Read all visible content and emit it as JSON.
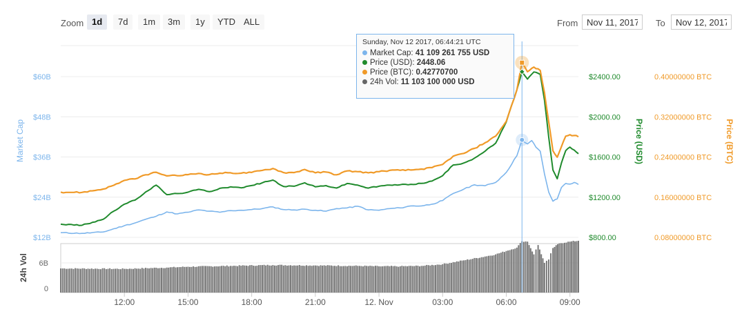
{
  "toolbar": {
    "zoom_label": "Zoom",
    "zoom_buttons": [
      "1d",
      "7d",
      "1m",
      "3m",
      "1y",
      "YTD",
      "ALL"
    ],
    "active_zoom": "1d",
    "from_label": "From",
    "from_value": "Nov 11, 2017",
    "to_label": "To",
    "to_value": "Nov 12, 2017"
  },
  "tooltip": {
    "date": "Sunday, Nov 12 2017, 06:44:21 UTC",
    "rows": [
      {
        "label": "Market Cap:",
        "value": "41 109 261 755 USD",
        "color": "#7cb5ec"
      },
      {
        "label": "Price (USD):",
        "value": "2448.06",
        "color": "#1f8a2c"
      },
      {
        "label": "Price (BTC):",
        "value": "0.42770700",
        "color": "#f09a28"
      },
      {
        "label": "24h Vol:",
        "value": "11 103 100 000 USD",
        "color": "#666666"
      }
    ]
  },
  "colors": {
    "market_cap": "#7cb5ec",
    "price_usd": "#1f8a2c",
    "price_btc": "#f09a28",
    "volume": "#777777",
    "crosshair": "#7cb5ec"
  },
  "chart_data": {
    "type": "line",
    "axes": {
      "market_cap": {
        "title": "Market Cap",
        "ticks": [
          "$12B",
          "$24B",
          "$36B",
          "$48B",
          "$60B"
        ],
        "range": [
          12,
          60
        ]
      },
      "price_usd": {
        "title": "Price (USD)",
        "ticks": [
          "$800.00",
          "$1200.00",
          "$1600.00",
          "$2000.00",
          "$2400.00"
        ],
        "range": [
          800,
          2400
        ]
      },
      "price_btc": {
        "title": "Price (BTC)",
        "ticks": [
          "0.08000000 BTC",
          "0.16000000 BTC",
          "0.24000000 BTC",
          "0.32000000 BTC",
          "0.40000000 BTC"
        ],
        "range": [
          0.08,
          0.4
        ]
      },
      "volume": {
        "title": "24h Vol",
        "ticks": [
          "0",
          "6B"
        ],
        "range": [
          0,
          14
        ]
      }
    },
    "x_range": [
      9.0,
      9.3
    ],
    "x_tick_labels": [
      {
        "x": 12,
        "label": "12:00"
      },
      {
        "x": 15,
        "label": "15:00"
      },
      {
        "x": 18,
        "label": "18:00"
      },
      {
        "x": 21,
        "label": "21:00"
      },
      {
        "x": 24,
        "label": "12. Nov"
      },
      {
        "x": 27,
        "label": "03:00"
      },
      {
        "x": 30,
        "label": "06:00"
      },
      {
        "x": 33,
        "label": "09:00"
      }
    ],
    "x_domain": [
      9.0,
      33.4
    ],
    "crosshair_x": 30.74,
    "series": [
      {
        "name": "Market Cap",
        "axis": "market_cap",
        "points": [
          [
            9.0,
            13.4
          ],
          [
            10.0,
            13.2
          ],
          [
            11.0,
            13.6
          ],
          [
            12.0,
            15.5
          ],
          [
            12.5,
            16.3
          ],
          [
            13.0,
            17.4
          ],
          [
            13.5,
            18.3
          ],
          [
            14.0,
            19.6
          ],
          [
            14.5,
            19.0
          ],
          [
            15.0,
            19.5
          ],
          [
            15.5,
            20.2
          ],
          [
            16.0,
            19.8
          ],
          [
            16.5,
            19.5
          ],
          [
            17.0,
            20.0
          ],
          [
            17.5,
            20.1
          ],
          [
            18.0,
            20.3
          ],
          [
            18.5,
            20.6
          ],
          [
            19.0,
            21.1
          ],
          [
            19.5,
            20.3
          ],
          [
            20.0,
            20.2
          ],
          [
            20.5,
            20.4
          ],
          [
            21.0,
            20.1
          ],
          [
            21.5,
            19.8
          ],
          [
            22.0,
            20.6
          ],
          [
            22.5,
            20.8
          ],
          [
            23.0,
            21.3
          ],
          [
            23.5,
            20.2
          ],
          [
            24.0,
            20.1
          ],
          [
            24.5,
            20.6
          ],
          [
            25.0,
            20.8
          ],
          [
            25.5,
            21.4
          ],
          [
            26.0,
            21.4
          ],
          [
            26.5,
            21.9
          ],
          [
            27.0,
            23.0
          ],
          [
            27.5,
            25.1
          ],
          [
            28.0,
            26.4
          ],
          [
            28.5,
            27.7
          ],
          [
            29.0,
            27.4
          ],
          [
            29.5,
            28.4
          ],
          [
            30.0,
            31.4
          ],
          [
            30.5,
            36.4
          ],
          [
            30.74,
            41.1
          ],
          [
            31.0,
            39.9
          ],
          [
            31.2,
            40.9
          ],
          [
            31.4,
            38.9
          ],
          [
            31.6,
            37.7
          ],
          [
            31.8,
            31.0
          ],
          [
            32.0,
            25.5
          ],
          [
            32.2,
            22.8
          ],
          [
            32.4,
            23.5
          ],
          [
            32.6,
            26.9
          ],
          [
            32.8,
            28.1
          ],
          [
            33.0,
            27.9
          ],
          [
            33.2,
            28.4
          ],
          [
            33.4,
            27.8
          ]
        ]
      },
      {
        "name": "Price (USD)",
        "axis": "price_usd",
        "points": [
          [
            9.0,
            931
          ],
          [
            10.0,
            920
          ],
          [
            11.0,
            980
          ],
          [
            11.5,
            1061
          ],
          [
            12.0,
            1130
          ],
          [
            12.5,
            1171
          ],
          [
            13.0,
            1251
          ],
          [
            13.5,
            1320
          ],
          [
            14.0,
            1225
          ],
          [
            14.5,
            1236
          ],
          [
            15.0,
            1250
          ],
          [
            15.5,
            1278
          ],
          [
            16.0,
            1255
          ],
          [
            16.5,
            1288
          ],
          [
            17.0,
            1303
          ],
          [
            17.5,
            1293
          ],
          [
            18.0,
            1316
          ],
          [
            18.5,
            1343
          ],
          [
            19.0,
            1370
          ],
          [
            19.5,
            1307
          ],
          [
            20.0,
            1309
          ],
          [
            20.5,
            1343
          ],
          [
            21.0,
            1303
          ],
          [
            21.5,
            1315
          ],
          [
            22.0,
            1291
          ],
          [
            22.5,
            1336
          ],
          [
            23.0,
            1320
          ],
          [
            23.5,
            1290
          ],
          [
            24.0,
            1309
          ],
          [
            24.5,
            1320
          ],
          [
            25.0,
            1324
          ],
          [
            25.5,
            1328
          ],
          [
            26.0,
            1337
          ],
          [
            26.5,
            1360
          ],
          [
            27.0,
            1414
          ],
          [
            27.5,
            1520
          ],
          [
            28.0,
            1540
          ],
          [
            28.5,
            1588
          ],
          [
            29.0,
            1658
          ],
          [
            29.5,
            1737
          ],
          [
            30.0,
            1949
          ],
          [
            30.5,
            2270
          ],
          [
            30.74,
            2448
          ],
          [
            31.0,
            2375
          ],
          [
            31.3,
            2446
          ],
          [
            31.6,
            2422
          ],
          [
            31.8,
            2167
          ],
          [
            32.0,
            1796
          ],
          [
            32.2,
            1470
          ],
          [
            32.4,
            1383
          ],
          [
            32.6,
            1540
          ],
          [
            32.8,
            1663
          ],
          [
            33.0,
            1698
          ],
          [
            33.2,
            1669
          ],
          [
            33.4,
            1632
          ]
        ]
      },
      {
        "name": "Price (BTC)",
        "axis": "price_btc",
        "points": [
          [
            9.0,
            0.1701
          ],
          [
            10.0,
            0.1695
          ],
          [
            11.0,
            0.1762
          ],
          [
            11.5,
            0.1837
          ],
          [
            12.0,
            0.1934
          ],
          [
            12.5,
            0.1963
          ],
          [
            13.0,
            0.2045
          ],
          [
            13.5,
            0.2096
          ],
          [
            14.0,
            0.2024
          ],
          [
            14.5,
            0.2027
          ],
          [
            15.0,
            0.2049
          ],
          [
            15.5,
            0.2073
          ],
          [
            16.0,
            0.2049
          ],
          [
            16.5,
            0.2077
          ],
          [
            17.0,
            0.2085
          ],
          [
            17.5,
            0.2077
          ],
          [
            18.0,
            0.2093
          ],
          [
            18.5,
            0.2133
          ],
          [
            19.0,
            0.2171
          ],
          [
            19.5,
            0.209
          ],
          [
            20.0,
            0.209
          ],
          [
            20.5,
            0.2151
          ],
          [
            21.0,
            0.2085
          ],
          [
            21.5,
            0.2101
          ],
          [
            22.0,
            0.2045
          ],
          [
            22.5,
            0.2123
          ],
          [
            23.0,
            0.2108
          ],
          [
            23.5,
            0.2085
          ],
          [
            24.0,
            0.2108
          ],
          [
            24.5,
            0.2133
          ],
          [
            25.0,
            0.2135
          ],
          [
            25.5,
            0.2141
          ],
          [
            26.0,
            0.2159
          ],
          [
            26.5,
            0.2188
          ],
          [
            27.0,
            0.2252
          ],
          [
            27.5,
            0.2416
          ],
          [
            28.0,
            0.2472
          ],
          [
            28.5,
            0.2571
          ],
          [
            29.0,
            0.2683
          ],
          [
            29.5,
            0.2815
          ],
          [
            30.0,
            0.311
          ],
          [
            30.5,
            0.3737
          ],
          [
            30.74,
            0.4277
          ],
          [
            31.0,
            0.4096
          ],
          [
            31.3,
            0.419
          ],
          [
            31.6,
            0.4122
          ],
          [
            31.8,
            0.3681
          ],
          [
            32.0,
            0.3096
          ],
          [
            32.2,
            0.2522
          ],
          [
            32.4,
            0.2396
          ],
          [
            32.6,
            0.2606
          ],
          [
            32.8,
            0.2815
          ],
          [
            33.0,
            0.2843
          ],
          [
            33.2,
            0.2827
          ],
          [
            33.4,
            0.2802
          ]
        ]
      }
    ],
    "volume": {
      "name": "24h Vol",
      "axis": "volume",
      "points": [
        [
          9.0,
          4.7
        ],
        [
          12.0,
          4.6
        ],
        [
          14.0,
          4.9
        ],
        [
          15.0,
          5.1
        ],
        [
          17.0,
          5.3
        ],
        [
          19.0,
          5.5
        ],
        [
          21.0,
          5.4
        ],
        [
          23.0,
          5.3
        ],
        [
          24.0,
          5.2
        ],
        [
          25.0,
          5.2
        ],
        [
          26.0,
          5.3
        ],
        [
          27.0,
          5.7
        ],
        [
          28.0,
          6.6
        ],
        [
          29.0,
          7.5
        ],
        [
          29.5,
          8.0
        ],
        [
          30.0,
          8.8
        ],
        [
          30.5,
          9.6
        ],
        [
          30.74,
          11.1
        ],
        [
          31.0,
          11.0
        ],
        [
          31.3,
          8.0
        ],
        [
          31.5,
          10.2
        ],
        [
          31.8,
          6.0
        ],
        [
          32.0,
          6.8
        ],
        [
          32.2,
          9.5
        ],
        [
          32.5,
          10.6
        ],
        [
          33.0,
          11.0
        ],
        [
          33.4,
          11.2
        ]
      ]
    }
  }
}
